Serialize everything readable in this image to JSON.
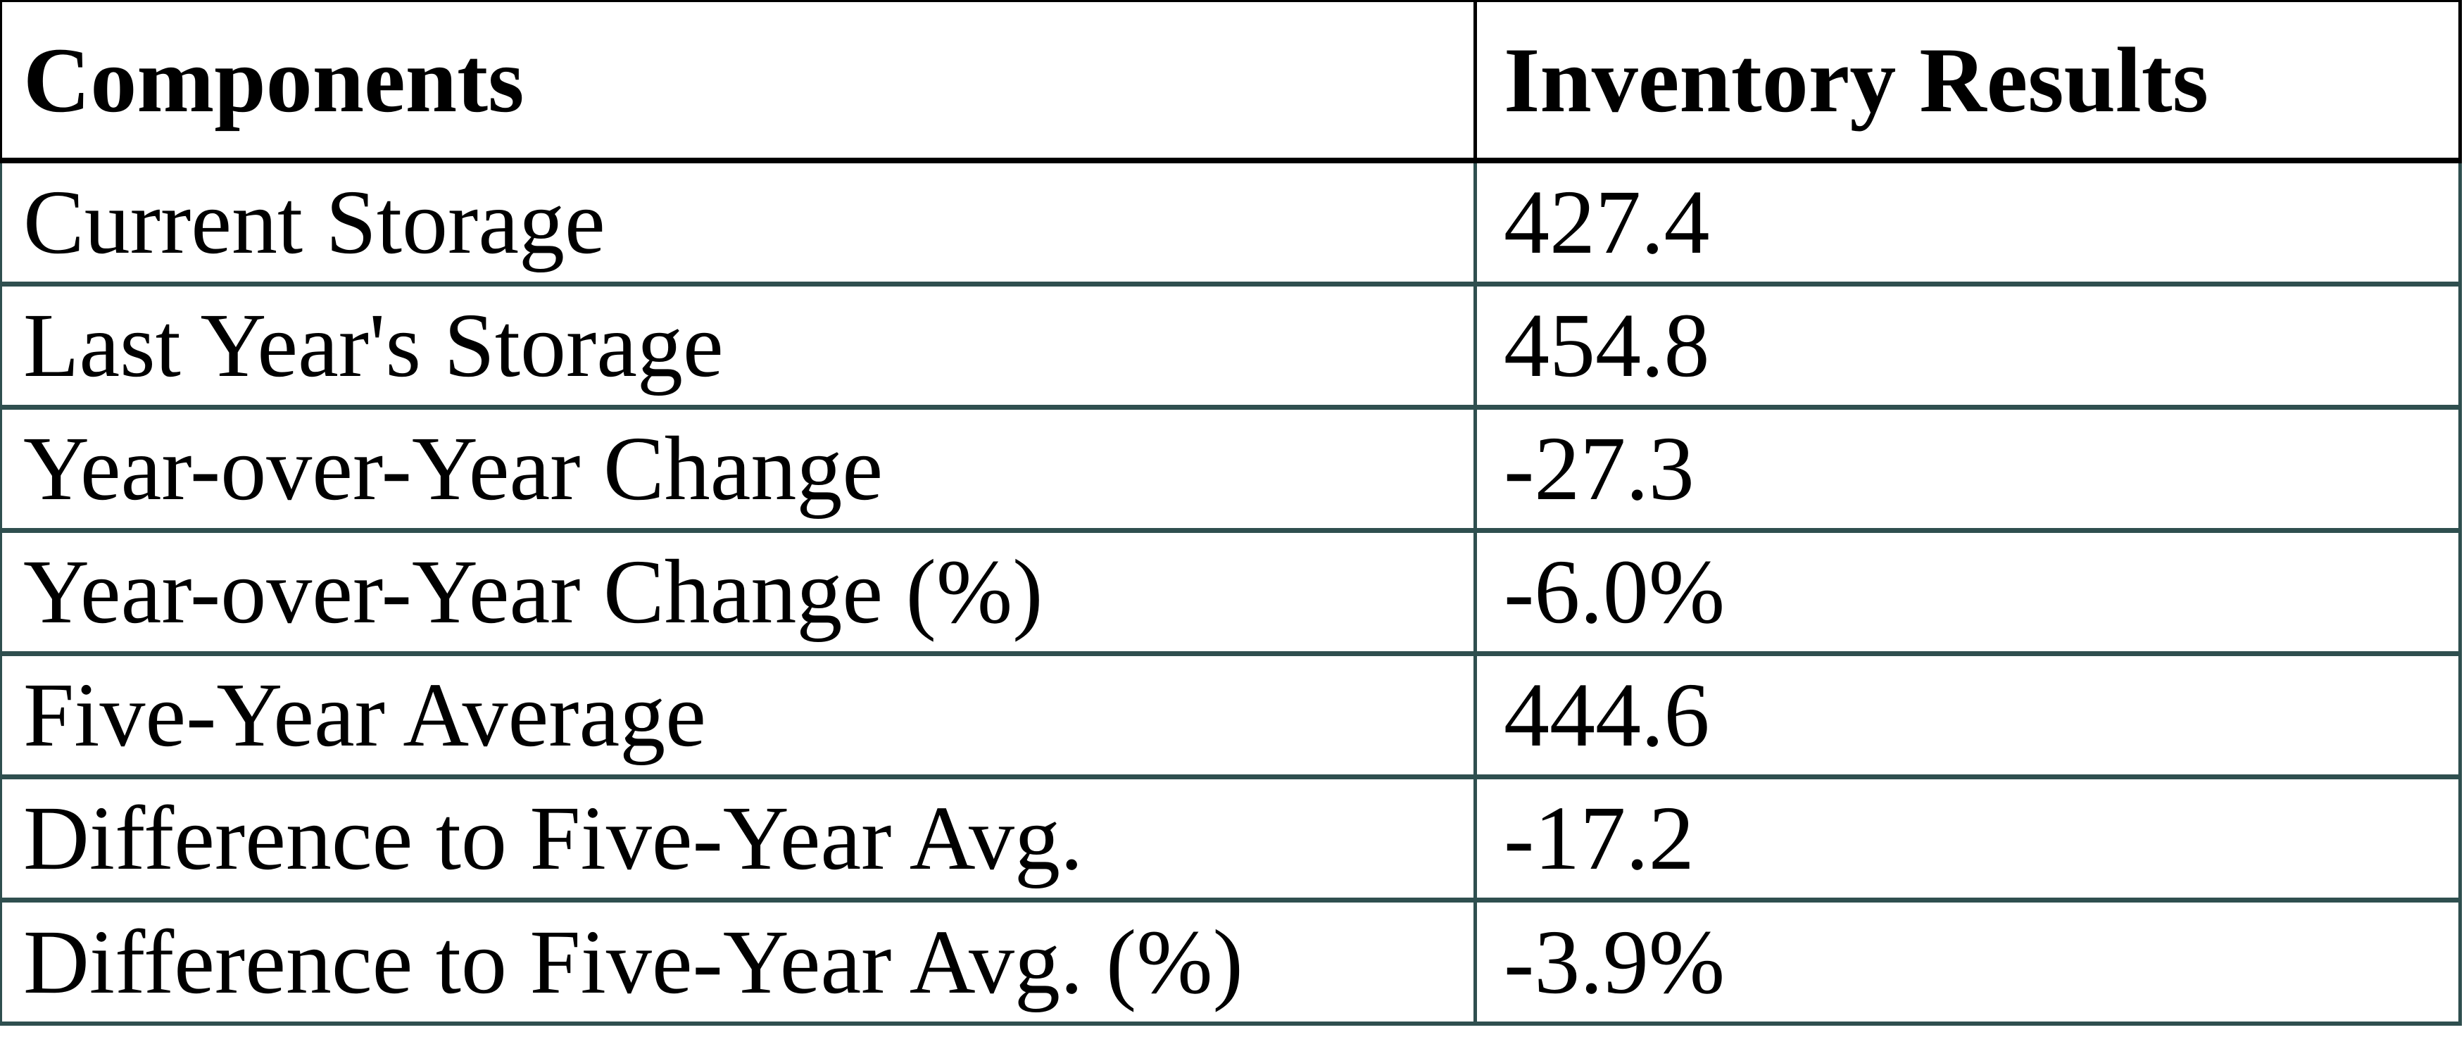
{
  "chart_data": {
    "type": "table",
    "columns": [
      "Components",
      "Inventory Results"
    ],
    "rows": [
      {
        "label": "Current Storage",
        "value": "427.4"
      },
      {
        "label": "Last Year's Storage",
        "value": "454.8"
      },
      {
        "label": "Year-over-Year Change",
        "value": "-27.3"
      },
      {
        "label": "Year-over-Year Change (%)",
        "value": "-6.0%"
      },
      {
        "label": "Five-Year Average",
        "value": "444.6"
      },
      {
        "label": "Difference to Five-Year Avg.",
        "value": "-17.2"
      },
      {
        "label": "Difference to Five-Year Avg. (%)",
        "value": "-3.9%"
      }
    ]
  },
  "colors": {
    "grid_body": "#2F4F4F",
    "grid_header": "#000000",
    "text": "#000000",
    "background": "#FFFFFF"
  }
}
